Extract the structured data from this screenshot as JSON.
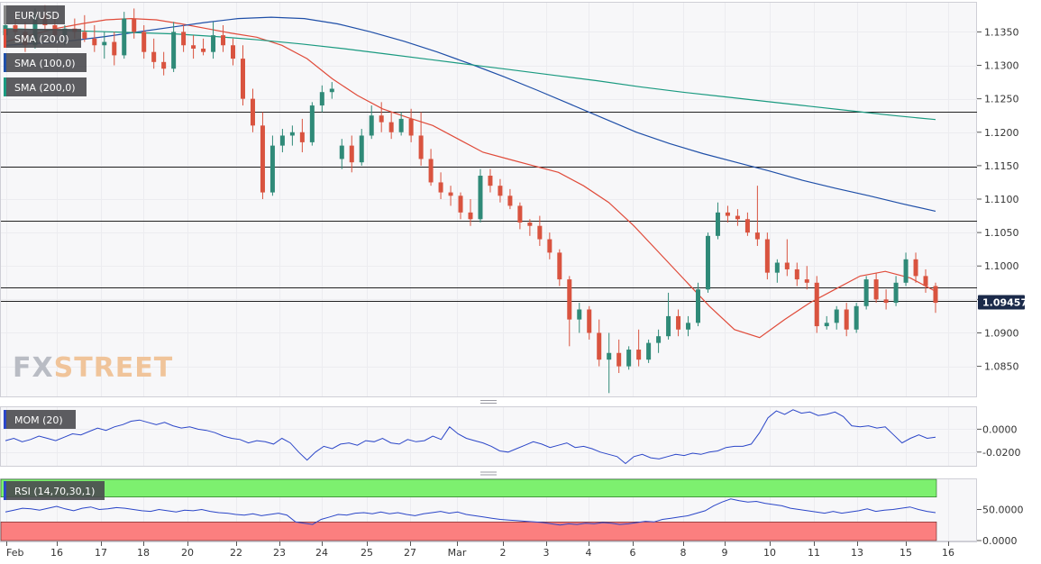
{
  "chart_data": {
    "type": "candlestick",
    "symbol": "EUR/USD",
    "watermark": {
      "part1": "FX",
      "part2": "STREET"
    },
    "last_price_label": "1.09457",
    "last_price": 1.09457,
    "y_range": [
      1.0805,
      1.1395
    ],
    "y_ticks": [
      "1.1350",
      "1.1300",
      "1.1250",
      "1.1200",
      "1.1150",
      "1.1100",
      "1.1050",
      "1.1000",
      "1.0950",
      "1.0900",
      "1.0850"
    ],
    "x_labels": [
      "Feb",
      "16",
      "17",
      "18",
      "20",
      "22",
      "23",
      "24",
      "25",
      "27",
      "Mar",
      "2",
      "3",
      "4",
      "6",
      "8",
      "9",
      "10",
      "11",
      "13",
      "15",
      "16"
    ],
    "horizontal_levels": [
      1.123,
      1.1148,
      1.1067,
      1.0968,
      1.0948
    ],
    "indicators": [
      {
        "name": "SMA (20,0)",
        "color": "#e04b3a"
      },
      {
        "name": "SMA (100,0)",
        "color": "#1f4fa8"
      },
      {
        "name": "SMA (200,0)",
        "color": "#1a9a80"
      }
    ],
    "sma20": [
      1.1335,
      1.1345,
      1.1355,
      1.1362,
      1.1368,
      1.137,
      1.1368,
      1.1362,
      1.1355,
      1.1348,
      1.1342,
      1.133,
      1.131,
      1.128,
      1.1255,
      1.1235,
      1.1222,
      1.121,
      1.119,
      1.117,
      1.116,
      1.115,
      1.114,
      1.112,
      1.1095,
      1.106,
      1.102,
      1.098,
      1.094,
      1.0905,
      1.0893,
      1.092,
      1.0945,
      1.0965,
      1.0985,
      1.0992,
      1.0982,
      1.0962
    ],
    "sma100": [
      1.133,
      1.1333,
      1.1337,
      1.1343,
      1.135,
      1.1357,
      1.1364,
      1.137,
      1.1372,
      1.137,
      1.1362,
      1.135,
      1.1336,
      1.132,
      1.1302,
      1.1283,
      1.1263,
      1.1242,
      1.1221,
      1.12,
      1.1183,
      1.1168,
      1.1155,
      1.1142,
      1.1128,
      1.1116,
      1.1105,
      1.1093,
      1.1082
    ],
    "sma200": [
      1.1355,
      1.1353,
      1.1351,
      1.1349,
      1.1347,
      1.1343,
      1.1338,
      1.1332,
      1.1325,
      1.1317,
      1.1309,
      1.1301,
      1.1293,
      1.1285,
      1.1277,
      1.1268,
      1.126,
      1.1253,
      1.1246,
      1.1239,
      1.1232,
      1.1225,
      1.1219
    ],
    "ohlc": [
      [
        1.1345,
        1.137,
        1.133,
        1.136
      ],
      [
        1.136,
        1.138,
        1.1345,
        1.135
      ],
      [
        1.135,
        1.1365,
        1.132,
        1.133
      ],
      [
        1.133,
        1.1385,
        1.1325,
        1.1375
      ],
      [
        1.1375,
        1.139,
        1.135,
        1.136
      ],
      [
        1.136,
        1.1375,
        1.134,
        1.1345
      ],
      [
        1.1345,
        1.136,
        1.133,
        1.1355
      ],
      [
        1.1355,
        1.137,
        1.134,
        1.135
      ],
      [
        1.135,
        1.1375,
        1.1335,
        1.134
      ],
      [
        1.134,
        1.136,
        1.132,
        1.133
      ],
      [
        1.133,
        1.135,
        1.131,
        1.1335
      ],
      [
        1.1335,
        1.135,
        1.13,
        1.1315
      ],
      [
        1.1315,
        1.138,
        1.131,
        1.137
      ],
      [
        1.137,
        1.1385,
        1.134,
        1.135
      ],
      [
        1.135,
        1.136,
        1.131,
        1.132
      ],
      [
        1.132,
        1.134,
        1.1295,
        1.1305
      ],
      [
        1.1305,
        1.132,
        1.1285,
        1.1295
      ],
      [
        1.1295,
        1.1365,
        1.129,
        1.135
      ],
      [
        1.135,
        1.136,
        1.132,
        1.133
      ],
      [
        1.133,
        1.1345,
        1.131,
        1.1325
      ],
      [
        1.1325,
        1.134,
        1.1315,
        1.132
      ],
      [
        1.132,
        1.1365,
        1.131,
        1.1345
      ],
      [
        1.1345,
        1.136,
        1.132,
        1.133
      ],
      [
        1.133,
        1.134,
        1.13,
        1.131
      ],
      [
        1.131,
        1.133,
        1.124,
        1.125
      ],
      [
        1.125,
        1.1265,
        1.12,
        1.121
      ],
      [
        1.121,
        1.123,
        1.11,
        1.111
      ],
      [
        1.111,
        1.1195,
        1.1105,
        1.118
      ],
      [
        1.118,
        1.1205,
        1.117,
        1.1195
      ],
      [
        1.1195,
        1.121,
        1.118,
        1.12
      ],
      [
        1.12,
        1.122,
        1.117,
        1.1185
      ],
      [
        1.1185,
        1.1245,
        1.118,
        1.124
      ],
      [
        1.124,
        1.127,
        1.123,
        1.126
      ],
      [
        1.126,
        1.1275,
        1.125,
        1.1265
      ],
      [
        1.116,
        1.119,
        1.1145,
        1.118
      ],
      [
        1.118,
        1.1195,
        1.114,
        1.1155
      ],
      [
        1.1155,
        1.1205,
        1.115,
        1.1195
      ],
      [
        1.1195,
        1.124,
        1.119,
        1.1225
      ],
      [
        1.1225,
        1.1245,
        1.12,
        1.1215
      ],
      [
        1.1215,
        1.123,
        1.119,
        1.12
      ],
      [
        1.12,
        1.123,
        1.1195,
        1.122
      ],
      [
        1.122,
        1.1235,
        1.1185,
        1.1195
      ],
      [
        1.1195,
        1.123,
        1.115,
        1.116
      ],
      [
        1.116,
        1.1175,
        1.112,
        1.1125
      ],
      [
        1.1125,
        1.114,
        1.11,
        1.111
      ],
      [
        1.111,
        1.112,
        1.109,
        1.1105
      ],
      [
        1.1105,
        1.111,
        1.107,
        1.108
      ],
      [
        1.108,
        1.11,
        1.106,
        1.107
      ],
      [
        1.107,
        1.1145,
        1.1065,
        1.1135
      ],
      [
        1.1135,
        1.1145,
        1.111,
        1.112
      ],
      [
        1.112,
        1.113,
        1.1095,
        1.1105
      ],
      [
        1.1105,
        1.1115,
        1.1085,
        1.109
      ],
      [
        1.109,
        1.1095,
        1.1055,
        1.1065
      ],
      [
        1.1065,
        1.107,
        1.1045,
        1.106
      ],
      [
        1.106,
        1.1075,
        1.103,
        1.104
      ],
      [
        1.104,
        1.105,
        1.101,
        1.102
      ],
      [
        1.102,
        1.1025,
        1.097,
        1.098
      ],
      [
        1.098,
        1.0985,
        1.088,
        1.092
      ],
      [
        1.092,
        1.0945,
        1.09,
        1.0935
      ],
      [
        1.0935,
        1.094,
        1.089,
        1.09
      ],
      [
        1.09,
        1.092,
        1.085,
        1.086
      ],
      [
        1.086,
        1.09,
        1.081,
        1.087
      ],
      [
        1.087,
        1.089,
        1.084,
        1.085
      ],
      [
        1.085,
        1.088,
        1.0845,
        1.0875
      ],
      [
        1.0875,
        1.0905,
        1.085,
        1.086
      ],
      [
        1.086,
        1.089,
        1.0855,
        1.0885
      ],
      [
        1.0885,
        1.0905,
        1.087,
        1.0895
      ],
      [
        1.0895,
        1.096,
        1.089,
        1.0925
      ],
      [
        1.0925,
        1.0935,
        1.0895,
        1.0905
      ],
      [
        1.0905,
        1.0925,
        1.0895,
        1.0915
      ],
      [
        1.0915,
        1.0975,
        1.091,
        1.0965
      ],
      [
        1.0965,
        1.105,
        1.096,
        1.1045
      ],
      [
        1.1045,
        1.1095,
        1.104,
        1.108
      ],
      [
        1.108,
        1.109,
        1.1065,
        1.1075
      ],
      [
        1.1075,
        1.1085,
        1.106,
        1.107
      ],
      [
        1.107,
        1.108,
        1.1045,
        1.105
      ],
      [
        1.105,
        1.112,
        1.103,
        1.104
      ],
      [
        1.104,
        1.105,
        1.098,
        1.099
      ],
      [
        1.099,
        1.101,
        1.0975,
        1.1005
      ],
      [
        1.1005,
        1.104,
        1.0985,
        1.0995
      ],
      [
        1.0995,
        1.1005,
        1.097,
        1.098
      ],
      [
        1.098,
        1.1,
        1.0965,
        1.0975
      ],
      [
        1.0975,
        1.0985,
        1.09,
        1.091
      ],
      [
        1.091,
        1.0925,
        1.0905,
        1.0915
      ],
      [
        1.0915,
        1.094,
        1.0905,
        1.0935
      ],
      [
        1.0935,
        1.0945,
        1.0895,
        1.0905
      ],
      [
        1.0905,
        1.0945,
        1.09,
        1.094
      ],
      [
        1.094,
        1.0985,
        1.0935,
        1.098
      ],
      [
        1.098,
        1.099,
        1.0945,
        1.095
      ],
      [
        1.095,
        1.0965,
        1.0935,
        1.0945
      ],
      [
        1.0945,
        1.0985,
        1.094,
        1.0975
      ],
      [
        1.0975,
        1.102,
        1.097,
        1.101
      ],
      [
        1.101,
        1.102,
        1.0975,
        1.0985
      ],
      [
        1.0985,
        1.0995,
        1.096,
        1.097
      ],
      [
        1.097,
        1.0975,
        1.093,
        1.0945
      ]
    ],
    "momentum": {
      "label": "MOM (20)",
      "y_ticks": [
        "0.0000",
        "-0.0200"
      ],
      "y_range": [
        -0.032,
        0.02
      ],
      "values": [
        -0.01,
        -0.008,
        -0.011,
        -0.009,
        -0.006,
        -0.008,
        -0.01,
        -0.007,
        -0.004,
        -0.005,
        -0.002,
        0.001,
        -0.001,
        0.002,
        0.004,
        0.007,
        0.008,
        0.006,
        0.004,
        0.006,
        0.003,
        0.001,
        0.002,
        0.0,
        -0.001,
        -0.003,
        -0.006,
        -0.008,
        -0.009,
        -0.012,
        -0.01,
        -0.011,
        -0.013,
        -0.008,
        -0.012,
        -0.02,
        -0.027,
        -0.02,
        -0.015,
        -0.017,
        -0.013,
        -0.012,
        -0.014,
        -0.01,
        -0.011,
        -0.008,
        -0.012,
        -0.013,
        -0.009,
        -0.011,
        -0.01,
        -0.006,
        -0.009,
        0.002,
        -0.004,
        -0.008,
        -0.01,
        -0.012,
        -0.015,
        -0.019,
        -0.02,
        -0.017,
        -0.014,
        -0.011,
        -0.013,
        -0.016,
        -0.014,
        -0.012,
        -0.016,
        -0.015,
        -0.017,
        -0.02,
        -0.022,
        -0.024,
        -0.03,
        -0.024,
        -0.022,
        -0.025,
        -0.026,
        -0.024,
        -0.022,
        -0.023,
        -0.021,
        -0.022,
        -0.02,
        -0.019,
        -0.016,
        -0.015,
        -0.015,
        -0.013,
        -0.003,
        0.01,
        0.016,
        0.013,
        0.017,
        0.014,
        0.015,
        0.012,
        0.013,
        0.015,
        0.011,
        0.003,
        0.002,
        0.003,
        0.001,
        0.002,
        -0.005,
        -0.012,
        -0.008,
        -0.005,
        -0.008,
        -0.007
      ]
    },
    "rsi": {
      "label": "RSI (14,70,30,1)",
      "y_ticks": [
        "50.0000",
        "0.0000"
      ],
      "y_range": [
        0,
        100
      ],
      "overbought": 70,
      "oversold": 30,
      "values": [
        46,
        49,
        52,
        51,
        49,
        52,
        55,
        51,
        48,
        52,
        54,
        50,
        51,
        53,
        52,
        50,
        48,
        47,
        50,
        48,
        46,
        49,
        48,
        50,
        47,
        45,
        44,
        42,
        41,
        43,
        40,
        42,
        44,
        41,
        30,
        28,
        26,
        34,
        38,
        42,
        41,
        44,
        45,
        43,
        46,
        43,
        45,
        42,
        40,
        43,
        45,
        47,
        44,
        46,
        42,
        40,
        38,
        36,
        34,
        33,
        32,
        31,
        30,
        29,
        27,
        25,
        27,
        26,
        28,
        27,
        29,
        28,
        26,
        27,
        29,
        31,
        30,
        34,
        36,
        38,
        40,
        44,
        48,
        56,
        62,
        67,
        64,
        62,
        63,
        60,
        58,
        56,
        52,
        50,
        48,
        46,
        44,
        47,
        44,
        46,
        48,
        51,
        47,
        49,
        50,
        52,
        54,
        50,
        47,
        45
      ]
    }
  }
}
